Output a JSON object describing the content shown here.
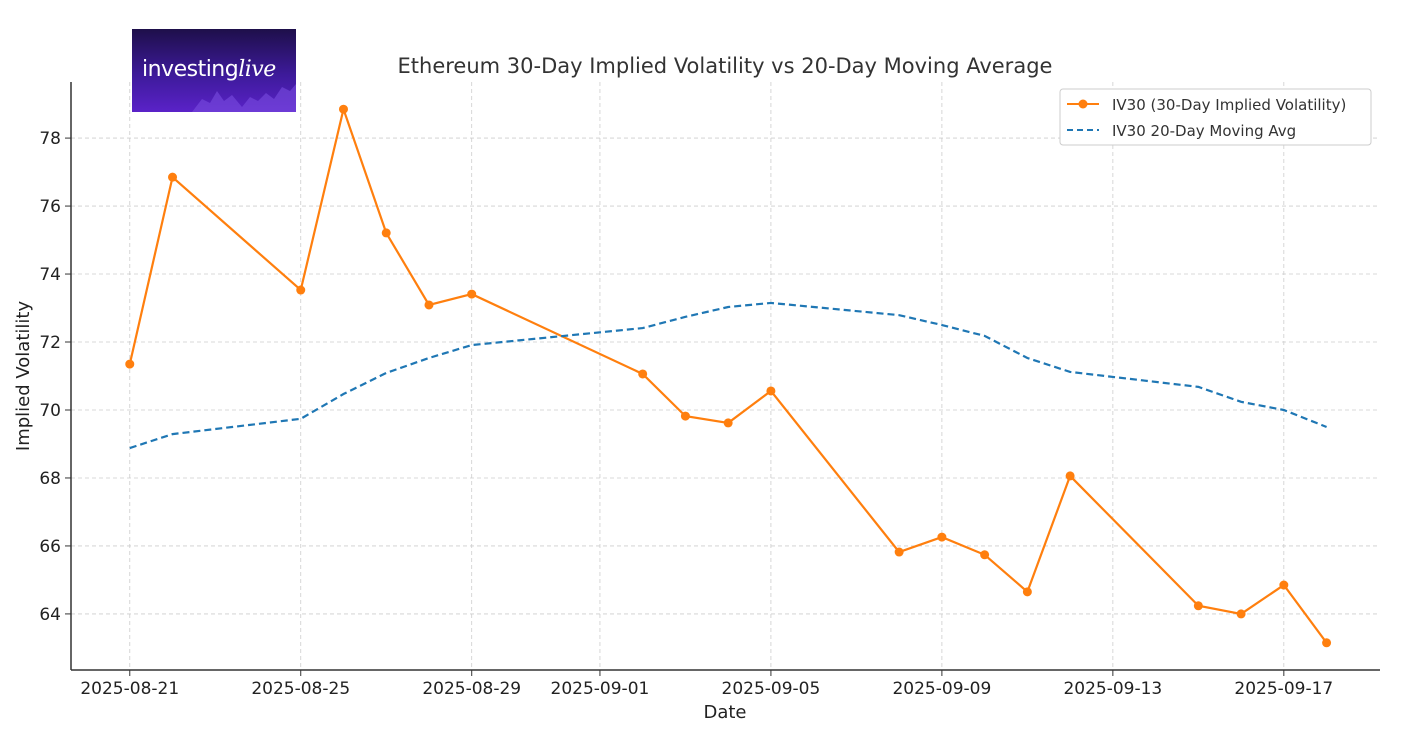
{
  "chart_data": {
    "type": "line",
    "title": "Ethereum 30-Day Implied Volatility vs 20-Day Moving Average",
    "xlabel": "Date",
    "ylabel": "Implied Volatility",
    "x": [
      "2025-08-21",
      "2025-08-22",
      "2025-08-25",
      "2025-08-26",
      "2025-08-27",
      "2025-08-28",
      "2025-08-29",
      "2025-09-02",
      "2025-09-03",
      "2025-09-04",
      "2025-09-05",
      "2025-09-08",
      "2025-09-09",
      "2025-09-10",
      "2025-09-11",
      "2025-09-12",
      "2025-09-15",
      "2025-09-16",
      "2025-09-17",
      "2025-09-18"
    ],
    "series": [
      {
        "name": "IV30 (30-Day Implied Volatility)",
        "color": "#ff7f0e",
        "style": "solid-marker",
        "values": [
          71.35,
          76.85,
          73.53,
          78.85,
          75.21,
          73.09,
          73.41,
          71.06,
          69.82,
          69.62,
          70.56,
          65.82,
          66.26,
          65.74,
          64.65,
          68.06,
          64.24,
          64.0,
          64.85,
          63.15
        ]
      },
      {
        "name": "IV30 20-Day Moving Avg",
        "color": "#1f77b4",
        "style": "dashed",
        "values": [
          68.88,
          69.29,
          69.74,
          70.47,
          71.09,
          71.53,
          71.91,
          72.41,
          72.74,
          73.03,
          73.15,
          72.79,
          72.5,
          72.18,
          71.53,
          71.12,
          70.68,
          70.24,
          70.0,
          69.5
        ]
      }
    ],
    "xticks": [
      "2025-08-21",
      "2025-08-25",
      "2025-08-29",
      "2025-09-01",
      "2025-09-05",
      "2025-09-09",
      "2025-09-13",
      "2025-09-17"
    ],
    "yticks": [
      64,
      66,
      68,
      70,
      72,
      74,
      76,
      78
    ],
    "ylim": [
      62.35,
      79.65
    ],
    "xlim": [
      "2025-08-19T15:00",
      "2025-09-19T06:00"
    ],
    "grid": true,
    "legend": "top-right"
  },
  "logo": {
    "text_a": "investing",
    "text_b": "live"
  }
}
